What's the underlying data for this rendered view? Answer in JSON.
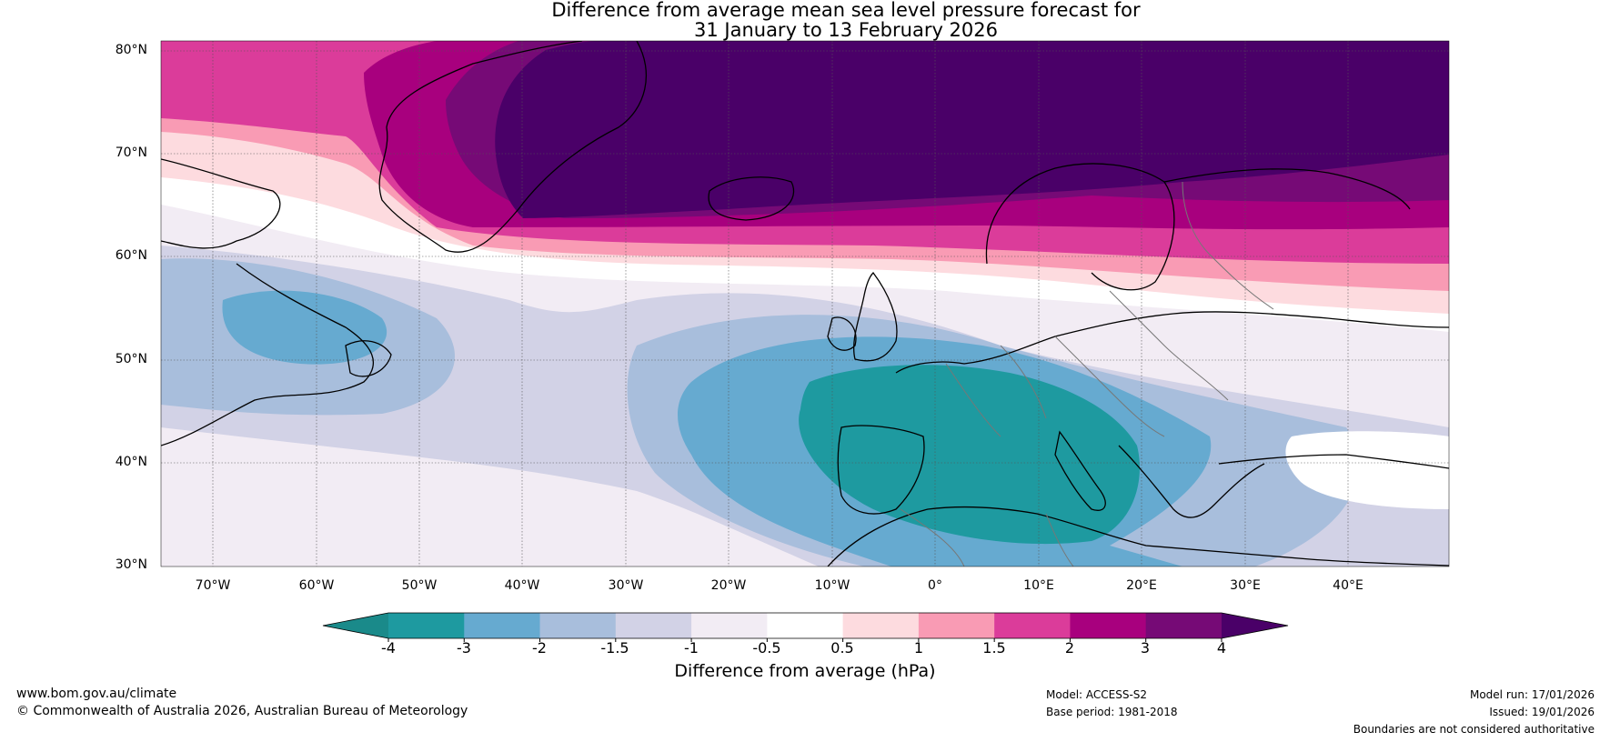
{
  "map": {
    "title_line1": "Difference from average mean sea level pressure forecast for",
    "title_line2": "31 January to 13 February 2026",
    "lat_labels": [
      "80°N",
      "70°N",
      "60°N",
      "50°N",
      "40°N",
      "30°N"
    ],
    "lon_labels": [
      "70°W",
      "60°W",
      "50°W",
      "40°W",
      "30°W",
      "20°W",
      "10°W",
      "0°",
      "10°E",
      "20°E",
      "30°E",
      "40°E"
    ]
  },
  "colorbar": {
    "title": "Difference from average (hPa)",
    "ticks": [
      "-4",
      "-3",
      "-2",
      "-1.5",
      "-1",
      "-0.5",
      "0.5",
      "1",
      "1.5",
      "2",
      "3",
      "4"
    ],
    "colors": [
      "#1a8a8a",
      "#1e9aa0",
      "#66aad0",
      "#a8bedc",
      "#d2d2e6",
      "#f2ecf4",
      "#ffffff",
      "#fddbdf",
      "#f99bb4",
      "#db3c9a",
      "#a8007e",
      "#760a76",
      "#4a0068"
    ]
  },
  "footer": {
    "website": "www.bom.gov.au/climate",
    "copyright": "© Commonwealth of Australia 2026, Australian Bureau of Meteorology",
    "model": "Model: ACCESS-S2",
    "base_period": "Base period: 1981-2018",
    "model_run": "Model run: 17/01/2026",
    "issued": "Issued: 19/01/2026",
    "disclaimer": "Boundaries are not considered authoritative"
  }
}
